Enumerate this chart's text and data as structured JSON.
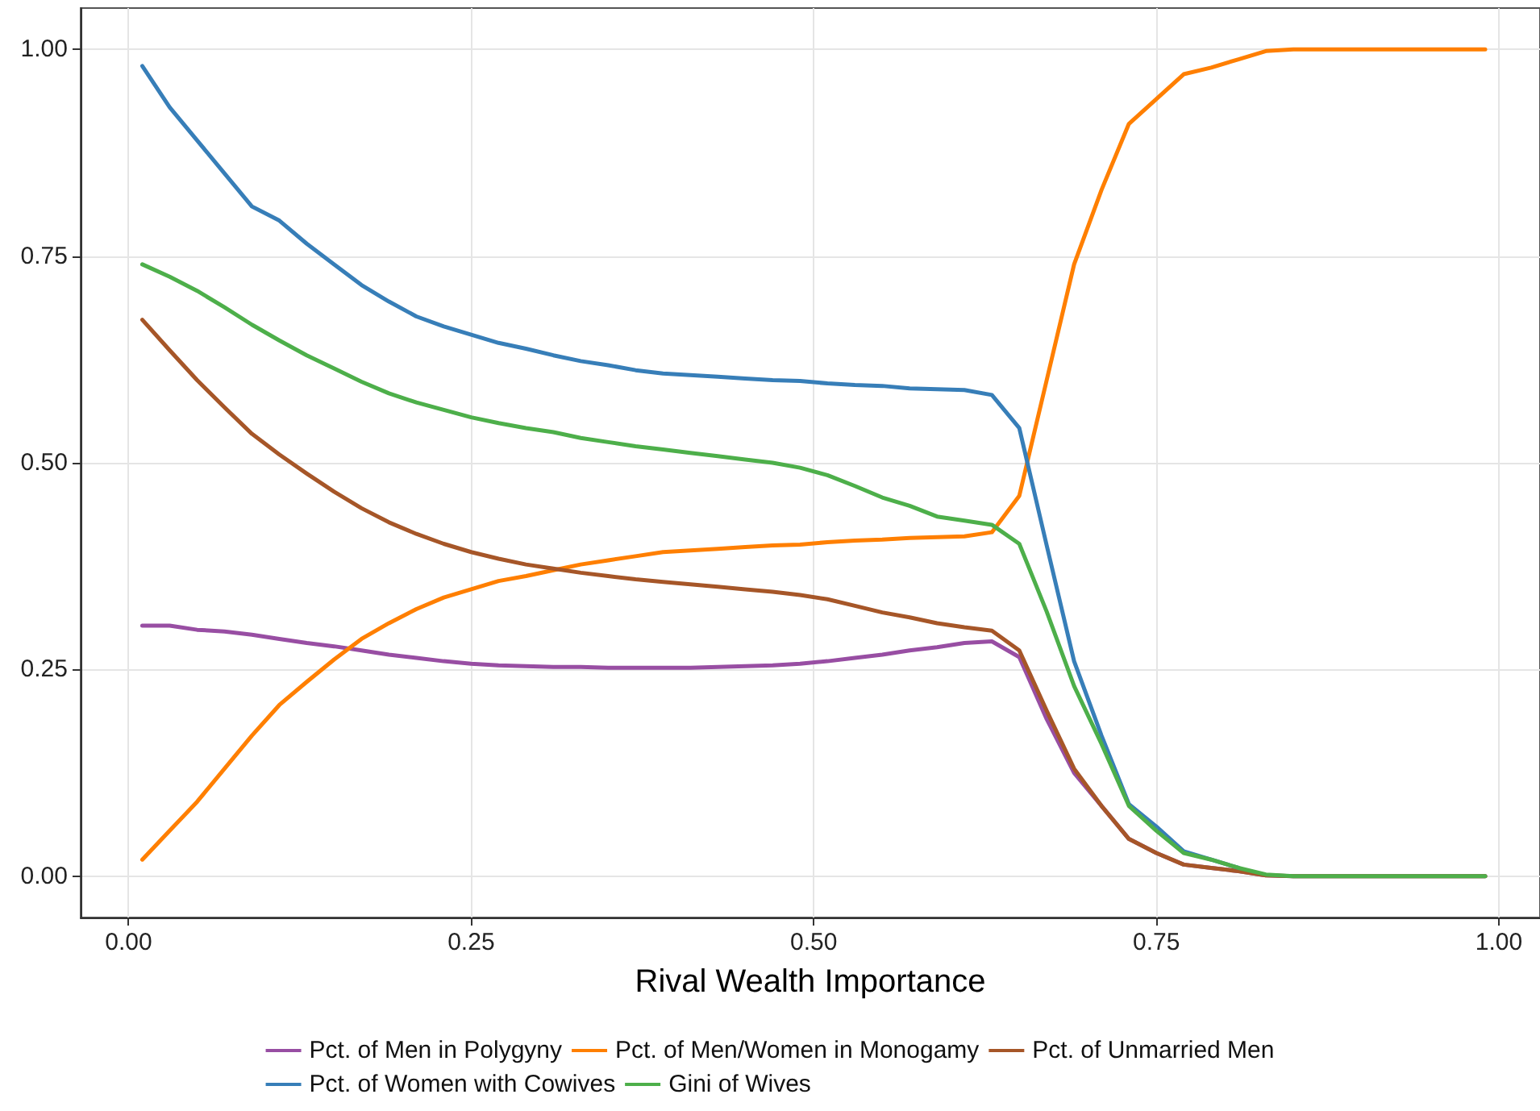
{
  "chart_data": {
    "type": "line",
    "xlabel": "Rival Wealth Importance",
    "x": [
      0.01,
      0.03,
      0.05,
      0.07,
      0.09,
      0.11,
      0.13,
      0.15,
      0.17,
      0.19,
      0.21,
      0.23,
      0.25,
      0.27,
      0.29,
      0.31,
      0.33,
      0.35,
      0.37,
      0.39,
      0.41,
      0.43,
      0.45,
      0.47,
      0.49,
      0.51,
      0.53,
      0.55,
      0.57,
      0.59,
      0.61,
      0.63,
      0.65,
      0.67,
      0.69,
      0.71,
      0.73,
      0.75,
      0.77,
      0.79,
      0.81,
      0.83,
      0.85,
      0.99
    ],
    "series": [
      {
        "name": "Pct. of Men in Polygyny",
        "color": "#984ea3",
        "values": [
          0.303,
          0.303,
          0.298,
          0.296,
          0.292,
          0.287,
          0.282,
          0.278,
          0.273,
          0.268,
          0.264,
          0.26,
          0.257,
          0.255,
          0.254,
          0.253,
          0.253,
          0.252,
          0.252,
          0.252,
          0.252,
          0.253,
          0.254,
          0.255,
          0.257,
          0.26,
          0.264,
          0.268,
          0.273,
          0.277,
          0.282,
          0.284,
          0.265,
          0.19,
          0.125,
          0.085,
          0.045,
          0.028,
          0.014,
          0.01,
          0.006,
          0.001,
          0,
          0
        ]
      },
      {
        "name": "Pct. of Men/Women in Monogamy",
        "color": "#ff7f00",
        "values": [
          0.02,
          0.055,
          0.09,
          0.13,
          0.17,
          0.207,
          0.235,
          0.262,
          0.287,
          0.306,
          0.323,
          0.337,
          0.347,
          0.357,
          0.363,
          0.37,
          0.377,
          0.382,
          0.387,
          0.392,
          0.394,
          0.396,
          0.398,
          0.4,
          0.401,
          0.404,
          0.406,
          0.407,
          0.409,
          0.41,
          0.411,
          0.416,
          0.46,
          0.6,
          0.74,
          0.83,
          0.91,
          0.94,
          0.97,
          0.978,
          0.988,
          0.998,
          1,
          1
        ]
      },
      {
        "name": "Pct. of Unmarried Men",
        "color": "#a65628",
        "values": [
          0.673,
          0.636,
          0.6,
          0.567,
          0.535,
          0.51,
          0.487,
          0.465,
          0.445,
          0.428,
          0.414,
          0.402,
          0.392,
          0.384,
          0.377,
          0.372,
          0.367,
          0.363,
          0.359,
          0.356,
          0.353,
          0.35,
          0.347,
          0.344,
          0.34,
          0.335,
          0.327,
          0.319,
          0.313,
          0.306,
          0.301,
          0.297,
          0.273,
          0.2,
          0.13,
          0.085,
          0.045,
          0.028,
          0.014,
          0.01,
          0.006,
          0.001,
          0,
          0
        ]
      },
      {
        "name": "Pct. of Women with Cowives",
        "color": "#377eb8",
        "values": [
          0.98,
          0.93,
          0.89,
          0.85,
          0.81,
          0.793,
          0.765,
          0.74,
          0.715,
          0.695,
          0.677,
          0.665,
          0.655,
          0.645,
          0.638,
          0.63,
          0.623,
          0.618,
          0.612,
          0.608,
          0.606,
          0.604,
          0.602,
          0.6,
          0.599,
          0.596,
          0.594,
          0.593,
          0.59,
          0.589,
          0.588,
          0.582,
          0.542,
          0.4,
          0.26,
          0.17,
          0.087,
          0.06,
          0.03,
          0.02,
          0.01,
          null,
          null,
          null
        ]
      },
      {
        "name": "Gini of Wives",
        "color": "#4daf4a",
        "values": [
          0.74,
          0.725,
          0.708,
          0.688,
          0.667,
          0.648,
          0.63,
          0.614,
          0.598,
          0.584,
          0.573,
          0.564,
          0.555,
          0.548,
          0.542,
          0.537,
          0.53,
          0.525,
          0.52,
          0.516,
          0.512,
          0.508,
          0.504,
          0.5,
          0.494,
          0.485,
          0.472,
          0.458,
          0.448,
          0.435,
          0.43,
          0.425,
          0.402,
          0.32,
          0.23,
          0.16,
          0.085,
          0.055,
          0.028,
          0.02,
          0.01,
          0.002,
          0,
          0
        ]
      }
    ],
    "xlim": [
      -0.035,
      1.03
    ],
    "ylim": [
      -0.05,
      1.05
    ],
    "xticks": [
      {
        "value": 0,
        "label": "0.00"
      },
      {
        "value": 0.25,
        "label": "0.25"
      },
      {
        "value": 0.5,
        "label": "0.50"
      },
      {
        "value": 0.75,
        "label": "0.75"
      },
      {
        "value": 1,
        "label": "1.00"
      }
    ],
    "yticks": [
      {
        "value": 0,
        "label": "0.00"
      },
      {
        "value": 0.25,
        "label": "0.25"
      },
      {
        "value": 0.5,
        "label": "0.50"
      },
      {
        "value": 0.75,
        "label": "0.75"
      },
      {
        "value": 1,
        "label": "1.00"
      }
    ],
    "grid": true,
    "legend": "bottom",
    "marker": "none",
    "line_style": "solid"
  }
}
